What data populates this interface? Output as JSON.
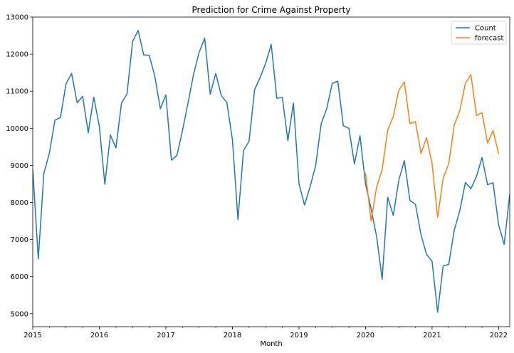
{
  "chart_data": {
    "type": "line",
    "title": "Prediction for Crime Against Property",
    "xlabel": "Month",
    "ylabel": "",
    "xlim": [
      "2015-01",
      "2022-03"
    ],
    "ylim": [
      4650,
      13000
    ],
    "x_ticks": [
      "2015",
      "2016",
      "2017",
      "2018",
      "2019",
      "2020",
      "2021",
      "2022"
    ],
    "y_ticks": [
      5000,
      6000,
      7000,
      8000,
      9000,
      10000,
      11000,
      12000,
      13000
    ],
    "grid": false,
    "legend_position": "top-right",
    "series": [
      {
        "name": "Count",
        "color": "#1f77b4",
        "start": "2015-01",
        "values": [
          8900,
          6480,
          8780,
          9330,
          10220,
          10290,
          11200,
          11480,
          10690,
          10860,
          9880,
          10840,
          10060,
          8490,
          9820,
          9470,
          10680,
          10930,
          12340,
          12640,
          11980,
          11970,
          11410,
          10530,
          10900,
          9140,
          9270,
          9940,
          10690,
          11460,
          12050,
          12430,
          10920,
          11480,
          10880,
          10700,
          9690,
          7540,
          9400,
          9650,
          11040,
          11370,
          11760,
          12260,
          10810,
          10830,
          9670,
          10680,
          8510,
          7930,
          8420,
          8990,
          10120,
          10530,
          11210,
          11270,
          10070,
          10000,
          9040,
          9800,
          8500,
          7830,
          7080,
          5930,
          8140,
          7650,
          8600,
          9130,
          8060,
          7950,
          7130,
          6600,
          6410,
          5040,
          6290,
          6330,
          7250,
          7780,
          8540,
          8370,
          8700,
          9210,
          8480,
          8530,
          7390,
          6870,
          8220
        ]
      },
      {
        "name": "forecast",
        "color": "#ff7f0e",
        "start": "2020-01",
        "values": [
          8790,
          7500,
          8420,
          8890,
          9950,
          10320,
          11030,
          11250,
          10130,
          10180,
          9320,
          9750,
          9050,
          7600,
          8650,
          9050,
          10090,
          10480,
          11210,
          11450,
          10350,
          10420,
          9600,
          9940,
          9300
        ]
      }
    ]
  }
}
